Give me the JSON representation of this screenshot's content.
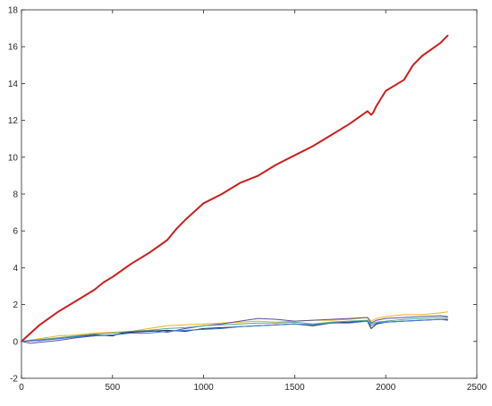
{
  "chart_data": {
    "type": "line",
    "title": "",
    "xlabel": "",
    "ylabel": "",
    "xlim": [
      0,
      2500
    ],
    "ylim": [
      -2,
      18
    ],
    "xticks": [
      0,
      500,
      1000,
      1500,
      2000,
      2500
    ],
    "yticks": [
      -2,
      0,
      2,
      4,
      6,
      8,
      10,
      12,
      14,
      16,
      18
    ],
    "grid": false,
    "legend": "none",
    "series": [
      {
        "color": "#cc1f1f",
        "width": 2,
        "x": [
          0,
          100,
          200,
          300,
          400,
          450,
          500,
          600,
          700,
          800,
          850,
          900,
          1000,
          1100,
          1200,
          1300,
          1400,
          1500,
          1600,
          1700,
          1800,
          1900,
          1920,
          1930,
          1950,
          2000,
          2100,
          2150,
          2200,
          2300,
          2340
        ],
        "y": [
          0,
          0.9,
          1.6,
          2.2,
          2.8,
          3.2,
          3.5,
          4.2,
          4.8,
          5.5,
          6.1,
          6.6,
          7.5,
          8.0,
          8.6,
          9.0,
          9.6,
          10.1,
          10.6,
          11.2,
          11.8,
          12.5,
          12.3,
          12.4,
          12.8,
          13.6,
          14.2,
          15.0,
          15.5,
          16.2,
          16.6
        ]
      },
      {
        "color": "#edb120",
        "width": 1,
        "x": [
          0,
          100,
          200,
          300,
          400,
          500,
          600,
          700,
          800,
          900,
          1000,
          1100,
          1200,
          1300,
          1400,
          1500,
          1600,
          1700,
          1800,
          1900,
          1920,
          1950,
          2000,
          2100,
          2200,
          2300,
          2340
        ],
        "y": [
          0,
          0.15,
          0.3,
          0.35,
          0.45,
          0.5,
          0.55,
          0.7,
          0.85,
          0.9,
          0.95,
          1.0,
          1.05,
          1.1,
          1.05,
          1.1,
          1.15,
          1.15,
          1.2,
          1.3,
          1.1,
          1.25,
          1.35,
          1.45,
          1.45,
          1.55,
          1.6
        ]
      },
      {
        "color": "#5b4b9e",
        "width": 1,
        "x": [
          0,
          50,
          100,
          200,
          300,
          400,
          500,
          600,
          700,
          800,
          900,
          1000,
          1100,
          1200,
          1300,
          1400,
          1500,
          1600,
          1700,
          1800,
          1900,
          1920,
          1950,
          2000,
          2100,
          2200,
          2300,
          2340
        ],
        "y": [
          0,
          -0.1,
          -0.05,
          0.05,
          0.2,
          0.3,
          0.35,
          0.5,
          0.6,
          0.5,
          0.7,
          0.85,
          0.95,
          1.1,
          1.25,
          1.2,
          1.1,
          1.15,
          1.2,
          1.25,
          1.3,
          1.0,
          1.15,
          1.25,
          1.3,
          1.35,
          1.4,
          1.35
        ]
      },
      {
        "color": "#4daa8a",
        "width": 1,
        "x": [
          0,
          100,
          200,
          300,
          400,
          500,
          600,
          700,
          800,
          900,
          1000,
          1100,
          1200,
          1300,
          1400,
          1500,
          1600,
          1700,
          1800,
          1900,
          1920,
          1950,
          2000,
          2100,
          2200,
          2300,
          2340
        ],
        "y": [
          0,
          0.1,
          0.2,
          0.3,
          0.4,
          0.45,
          0.55,
          0.6,
          0.7,
          0.75,
          0.85,
          0.9,
          0.95,
          1.0,
          1.0,
          1.05,
          0.95,
          1.05,
          1.1,
          1.15,
          0.95,
          1.05,
          1.1,
          1.2,
          1.25,
          1.3,
          1.3
        ]
      },
      {
        "color": "#1b2a4a",
        "width": 1,
        "x": [
          0,
          100,
          200,
          300,
          400,
          500,
          550,
          600,
          700,
          800,
          900,
          1000,
          1100,
          1200,
          1300,
          1400,
          1500,
          1600,
          1700,
          1800,
          1900,
          1920,
          1950,
          2000,
          2100,
          2200,
          2300,
          2340
        ],
        "y": [
          0,
          0.05,
          0.15,
          0.25,
          0.35,
          0.3,
          0.45,
          0.5,
          0.55,
          0.6,
          0.55,
          0.7,
          0.75,
          0.8,
          0.85,
          0.9,
          0.95,
          0.85,
          1.0,
          1.05,
          1.1,
          0.7,
          0.95,
          1.05,
          1.1,
          1.15,
          1.2,
          1.2
        ]
      },
      {
        "color": "#3a7ad9",
        "width": 1,
        "x": [
          0,
          100,
          200,
          300,
          400,
          500,
          600,
          700,
          800,
          900,
          1000,
          1100,
          1200,
          1300,
          1400,
          1500,
          1600,
          1700,
          1800,
          1900,
          1920,
          1950,
          2000,
          2100,
          2200,
          2300,
          2340
        ],
        "y": [
          0,
          0.05,
          0.15,
          0.25,
          0.3,
          0.35,
          0.45,
          0.45,
          0.55,
          0.6,
          0.65,
          0.7,
          0.8,
          0.85,
          0.9,
          0.95,
          0.9,
          1.0,
          1.0,
          1.1,
          0.85,
          1.0,
          1.05,
          1.1,
          1.15,
          1.2,
          1.15
        ]
      }
    ]
  }
}
